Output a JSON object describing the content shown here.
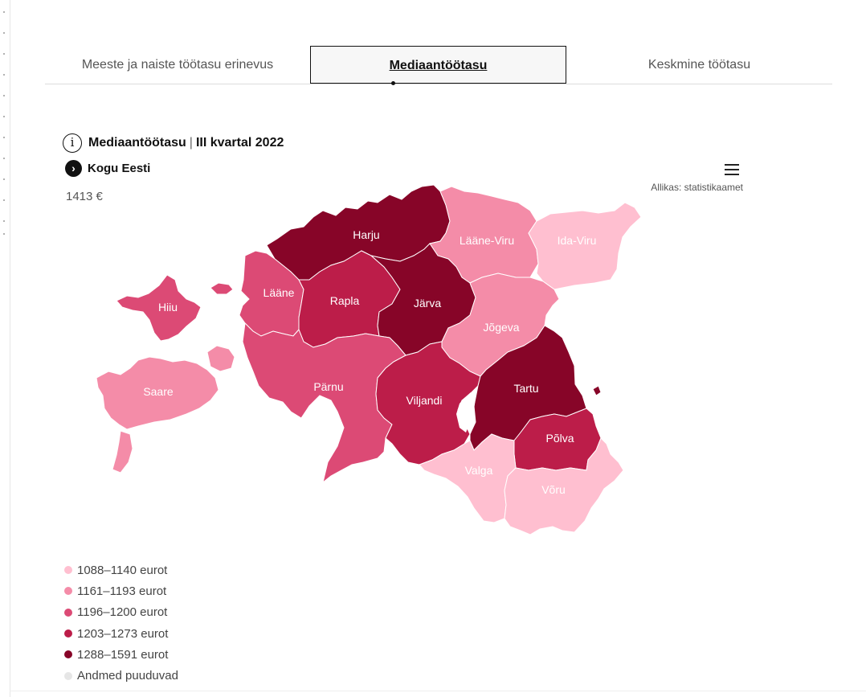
{
  "tabs": [
    {
      "label": "Meeste ja naiste töötasu erinevus"
    },
    {
      "label": "Mediaantöötasu"
    },
    {
      "label": "Keskmine töötasu"
    }
  ],
  "chart": {
    "title": "Mediaantöötasu",
    "subtitle": "III kvartal 2022",
    "title_separator": "|",
    "breadcrumb": "Kogu Eesti",
    "value": "1413 €",
    "source": "Allikas: statistikaamet"
  },
  "colors": {
    "c1": "#ffbfd0",
    "c2": "#f48ca8",
    "c3": "#dc4a75",
    "c4": "#bc1d49",
    "c5": "#870528",
    "na": "#e6e6e6"
  },
  "counties": {
    "harju": {
      "name": "Harju",
      "class": "c5"
    },
    "laane_viru": {
      "name": "Lääne-Viru",
      "class": "c2"
    },
    "ida_viru": {
      "name": "Ida-Viru",
      "class": "c1"
    },
    "laane": {
      "name": "Lääne",
      "class": "c3"
    },
    "rapla": {
      "name": "Rapla",
      "class": "c4"
    },
    "jarva": {
      "name": "Järva",
      "class": "c5"
    },
    "hiiu": {
      "name": "Hiiu",
      "class": "c3"
    },
    "jogeva": {
      "name": "Jõgeva",
      "class": "c2"
    },
    "saare": {
      "name": "Saare",
      "class": "c2"
    },
    "parnu": {
      "name": "Pärnu",
      "class": "c3"
    },
    "viljandi": {
      "name": "Viljandi",
      "class": "c4"
    },
    "tartu": {
      "name": "Tartu",
      "class": "c5"
    },
    "polva": {
      "name": "Põlva",
      "class": "c4"
    },
    "valga": {
      "name": "Valga",
      "class": "c1"
    },
    "voru": {
      "name": "Võru",
      "class": "c1"
    }
  },
  "legend": [
    {
      "label": "1088–1140 eurot",
      "class": "c1"
    },
    {
      "label": "1161–1193 eurot",
      "class": "c2"
    },
    {
      "label": "1196–1200 eurot",
      "class": "c3"
    },
    {
      "label": "1203–1273 eurot",
      "class": "c4"
    },
    {
      "label": "1288–1591 eurot",
      "class": "c5"
    },
    {
      "label": "Andmed puuduvad",
      "class": "na"
    }
  ],
  "icons": {
    "info": "i",
    "chevron": "›"
  }
}
